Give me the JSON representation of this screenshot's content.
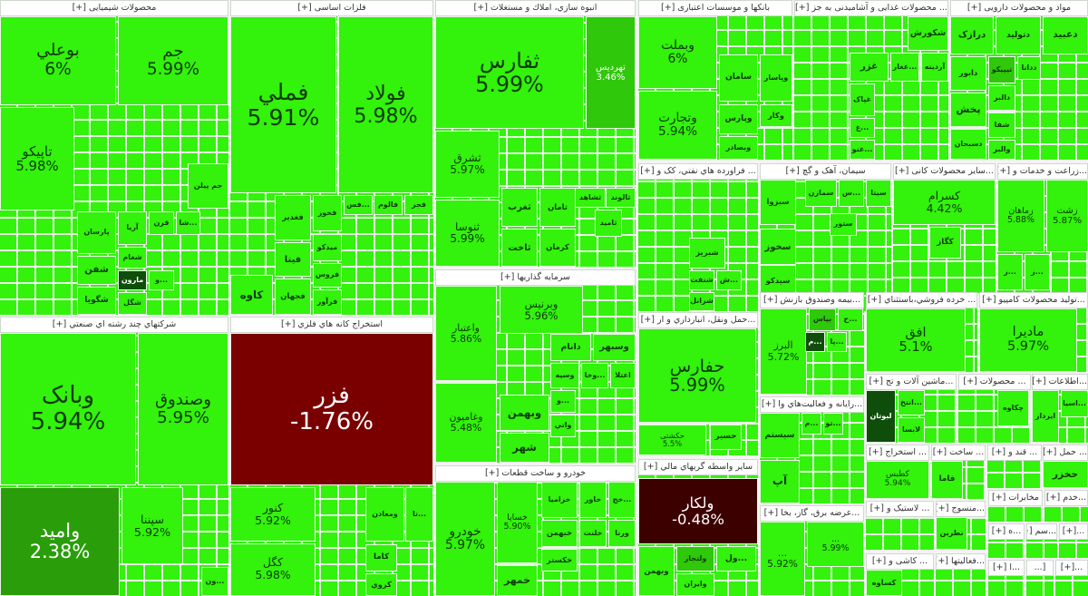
{
  "colors": {
    "up": "#33f20c",
    "up_mid": "#2fc80a",
    "up_dark": "#2a9e0a",
    "deep_green": "#0f4d0a",
    "down": "#7a0000",
    "down_dark": "#3d0000"
  },
  "sectors": [
    {
      "title": "محصولات شیمیایی [+]",
      "tiles": [
        {
          "label": "بوعلي",
          "pct": "6%"
        },
        {
          "label": "جم",
          "pct": "5.99%"
        },
        {
          "label": "تاپیکو",
          "pct": "5.98%"
        },
        {
          "label": "جم پیلن"
        },
        {
          "label": "پارسان"
        },
        {
          "label": "آریا"
        },
        {
          "label": "قرن"
        },
        {
          "label": "شفن"
        },
        {
          "label": "شگویا"
        },
        {
          "label": "شغام"
        },
        {
          "label": "مارون",
          "color": "deep_green"
        },
        {
          "label": "شگل"
        },
        {
          "label": "...شا"
        },
        {
          "label": "...و"
        }
      ]
    },
    {
      "title": "فلزات اساسی [+]",
      "tiles": [
        {
          "label": "فملي",
          "pct": "5.91%"
        },
        {
          "label": "فولاد",
          "pct": "5.98%"
        },
        {
          "label": "فغدیر"
        },
        {
          "label": "فخوز"
        },
        {
          "label": "فیتا"
        },
        {
          "label": "میدکو"
        },
        {
          "label": "فروس"
        },
        {
          "label": "فجهان"
        },
        {
          "label": "فرآور"
        },
        {
          "label": "کاوه"
        },
        {
          "label": "فجر"
        },
        {
          "label": "فالوم"
        },
        {
          "label": "...فس"
        }
      ]
    },
    {
      "title": "انبوه سازي، املاك و مستغلات [+]",
      "tiles": [
        {
          "label": "ثفارس",
          "pct": "5.99%"
        },
        {
          "label": "تهردیس",
          "pct": "3.46%",
          "color": "up_mid"
        },
        {
          "label": "ثشرق",
          "pct": "5.97%"
        },
        {
          "label": "ثنوسا",
          "pct": "5.99%"
        },
        {
          "label": "ثغرب"
        },
        {
          "label": "ثامان"
        },
        {
          "label": "ثاخت"
        },
        {
          "label": "کرمان"
        },
        {
          "label": "ثشاهد"
        },
        {
          "label": "ثالوند"
        },
        {
          "label": "ثامید"
        }
      ]
    },
    {
      "title": "بانکها و موسسات اعتباری [+]",
      "tiles": [
        {
          "label": "وبملت",
          "pct": "6%"
        },
        {
          "label": "وتجارت",
          "pct": "5.94%"
        },
        {
          "label": "سامان"
        },
        {
          "label": "وپاسار"
        },
        {
          "label": "وپارس"
        },
        {
          "label": "وکار"
        },
        {
          "label": "وبصادر"
        }
      ]
    },
    {
      "title": "... محصولات غذایی و آشامیدنی به جز [+]",
      "tiles": [
        {
          "label": "شکورش"
        },
        {
          "label": "غزر"
        },
        {
          "label": "...غغار"
        },
        {
          "label": "آردینه"
        },
        {
          "label": "غپاک"
        },
        {
          "label": "...غ"
        },
        {
          "label": "...غنو"
        }
      ]
    },
    {
      "title": "مواد و محصولات دارویی [+]",
      "tiles": [
        {
          "label": "درازک"
        },
        {
          "label": "دتولید"
        },
        {
          "label": "دعبید"
        },
        {
          "label": "دابور"
        },
        {
          "label": "تیپیکو",
          "color": "up_mid"
        },
        {
          "label": "ددانا"
        },
        {
          "label": "دالبر"
        },
        {
          "label": "پخش"
        },
        {
          "label": "شفا"
        },
        {
          "label": "دسبحان"
        },
        {
          "label": "والبر"
        }
      ]
    },
    {
      "title": "... فراورده هاي نفتي، کک و [+]",
      "tiles": [
        {
          "label": "شبریز"
        },
        {
          "label": "شنفت"
        },
        {
          "label": "شرانل"
        },
        {
          "label": "...ش"
        }
      ]
    },
    {
      "title": "سیمان، آهک و گچ [+]",
      "tiles": [
        {
          "label": "سبزوا"
        },
        {
          "label": "سخوز"
        },
        {
          "label": "سیدکو"
        },
        {
          "label": "سمازن"
        },
        {
          "label": "...س"
        },
        {
          "label": "سیتا"
        },
        {
          "label": "ستور"
        }
      ]
    },
    {
      "title": "...سایر محصولات کانی [+]",
      "tiles": [
        {
          "label": "کسرام",
          "pct": "4.42%"
        },
        {
          "label": "کگاز"
        }
      ]
    },
    {
      "title": "...زراعت و خدمات و [+]",
      "tiles": [
        {
          "label": "زماهان",
          "pct": "5.88%"
        },
        {
          "label": "زشت",
          "pct": "5.87%"
        },
        {
          "label": "...ز"
        },
        {
          "label": "...ز"
        }
      ]
    },
    {
      "title": "...بیمه وصندوق بازنش [+]",
      "tiles": [
        {
          "label": "البرز",
          "pct": "5.72%"
        },
        {
          "label": "بپاس",
          "color": "up_mid"
        },
        {
          "label": "...ح"
        },
        {
          "label": "...م",
          "color": "deep_green"
        },
        {
          "label": "...پا"
        }
      ]
    },
    {
      "title": "... خرده فروشي،باستثناي [+]",
      "tiles": [
        {
          "label": "افق",
          "pct": "5.1%"
        }
      ]
    },
    {
      "title": "...تولید محصولات کامپیو [+]",
      "tiles": [
        {
          "label": "مادیرا",
          "pct": "5.97%"
        }
      ]
    },
    {
      "title": "...حمل ونقل، انبارداري و ار [+]",
      "tiles": [
        {
          "label": "حفارس",
          "pct": "5.99%"
        },
        {
          "label": "حکشتی",
          "pct": "5.5%"
        },
        {
          "label": "حسیر"
        }
      ]
    },
    {
      "title": "سرمایه گذاریها [+]",
      "tiles": [
        {
          "label": "واعتبار",
          "pct": "5.86%"
        },
        {
          "label": "وغامیون",
          "pct": "5.48%"
        },
        {
          "label": "وبرنیس",
          "pct": "5.96%"
        },
        {
          "label": "دانام"
        },
        {
          "label": "وسبهر"
        },
        {
          "label": "وسیه"
        },
        {
          "label": "...وخا"
        },
        {
          "label": "اعتلا"
        },
        {
          "label": "وبهمن"
        },
        {
          "label": "شهر"
        },
        {
          "label": "...و"
        },
        {
          "label": "واتي"
        }
      ]
    },
    {
      "title": "...رایانه و فعالیت‌هاي وا [+]",
      "tiles": [
        {
          "label": "سیستم"
        },
        {
          "label": "آپ"
        },
        {
          "label": "...م"
        },
        {
          "label": "...تو"
        }
      ]
    },
    {
      "title": "...ماشین آلات و تج [+]",
      "tiles": [
        {
          "label": "لبوتان",
          "color": "deep_green"
        },
        {
          "label": "...انتخ"
        },
        {
          "label": "لابسا"
        }
      ]
    },
    {
      "title": "... محصولات [+]",
      "tiles": [
        {
          "label": "چکاوه"
        }
      ]
    },
    {
      "title": "...اطلاعات [+]",
      "tiles": [
        {
          "label": "ایرداز"
        },
        {
          "label": "...اسیا"
        }
      ]
    },
    {
      "title": "سایر واسطه گریهاي مالي [+]",
      "tiles": [
        {
          "label": "ولکار",
          "pct": "-0.48%",
          "color": "down_dark"
        },
        {
          "label": "وبهمن"
        },
        {
          "label": "ولتجار",
          "color": "up_mid"
        },
        {
          "label": "...ول"
        },
        {
          "label": "وایران"
        }
      ]
    },
    {
      "title": "شرکتهاي چند رشته اي صنعتي [+]",
      "tiles": [
        {
          "label": "وبانک",
          "pct": "5.94%"
        },
        {
          "label": "وصندوق",
          "pct": "5.95%"
        },
        {
          "label": "وامید",
          "pct": "2.38%",
          "color": "up_dark"
        },
        {
          "label": "سپننا",
          "pct": "5.92%"
        },
        {
          "label": "...ون"
        }
      ]
    },
    {
      "title": "استخراج کانه هاي فلزي [+]",
      "tiles": [
        {
          "label": "فزر",
          "pct": "-1.76%",
          "color": "down"
        },
        {
          "label": "کنور",
          "pct": "5.92%"
        },
        {
          "label": "کگل",
          "pct": "5.98%"
        },
        {
          "label": "ومعادن"
        },
        {
          "label": "...تا"
        },
        {
          "label": "کاما"
        },
        {
          "label": "کروي"
        }
      ]
    },
    {
      "title": "خودرو و ساخت قطعات [+]",
      "tiles": [
        {
          "label": "خودرو",
          "pct": "5.97%"
        },
        {
          "label": "خساپا",
          "pct": "5.90%"
        },
        {
          "label": "خزامیا"
        },
        {
          "label": "خاور"
        },
        {
          "label": "...خج"
        },
        {
          "label": "خبهمن"
        },
        {
          "label": "خلنت"
        },
        {
          "label": "ورنا"
        },
        {
          "label": "خکستر"
        },
        {
          "label": "خمهر"
        }
      ]
    },
    {
      "title": "...عرضه برق، گاز، بخا [+]",
      "tiles": [
        {
          "label": "...",
          "pct": "5.92%"
        },
        {
          "label": "...",
          "pct": "5.99%"
        }
      ]
    },
    {
      "title": "... استخراج [+]",
      "tiles": [
        {
          "label": "کطبس",
          "pct": "5.94%"
        }
      ]
    },
    {
      "title": "... ساخت [+]",
      "tiles": [
        {
          "label": "فاما"
        }
      ]
    },
    {
      "title": "... قند و [+]",
      "tiles": []
    },
    {
      "title": "... حمل [+]",
      "tiles": [
        {
          "label": "حخزر"
        }
      ]
    },
    {
      "title": "مخابرات [+]",
      "tiles": []
    },
    {
      "title": "...خدم [+]",
      "tiles": []
    },
    {
      "title": "... لاستیک و [+]",
      "tiles": []
    },
    {
      "title": "...منسوج [+]",
      "tiles": [
        {
          "label": "نطرین"
        }
      ]
    },
    {
      "title": "... کاشی و [+]",
      "tiles": [
        {
          "label": "کساوه"
        }
      ]
    },
    {
      "title": "...فعالیتها [+]",
      "tiles": []
    },
    {
      "title": "...ه [+]",
      "tiles": []
    },
    {
      "title": "...سم [+]",
      "tiles": []
    },
    {
      "title": "...[+]",
      "tiles": []
    },
    {
      "title": "...ا [+]",
      "tiles": []
    },
    {
      "title": "[...",
      "tiles": []
    },
    {
      "title": "...[+]",
      "tiles": []
    }
  ]
}
